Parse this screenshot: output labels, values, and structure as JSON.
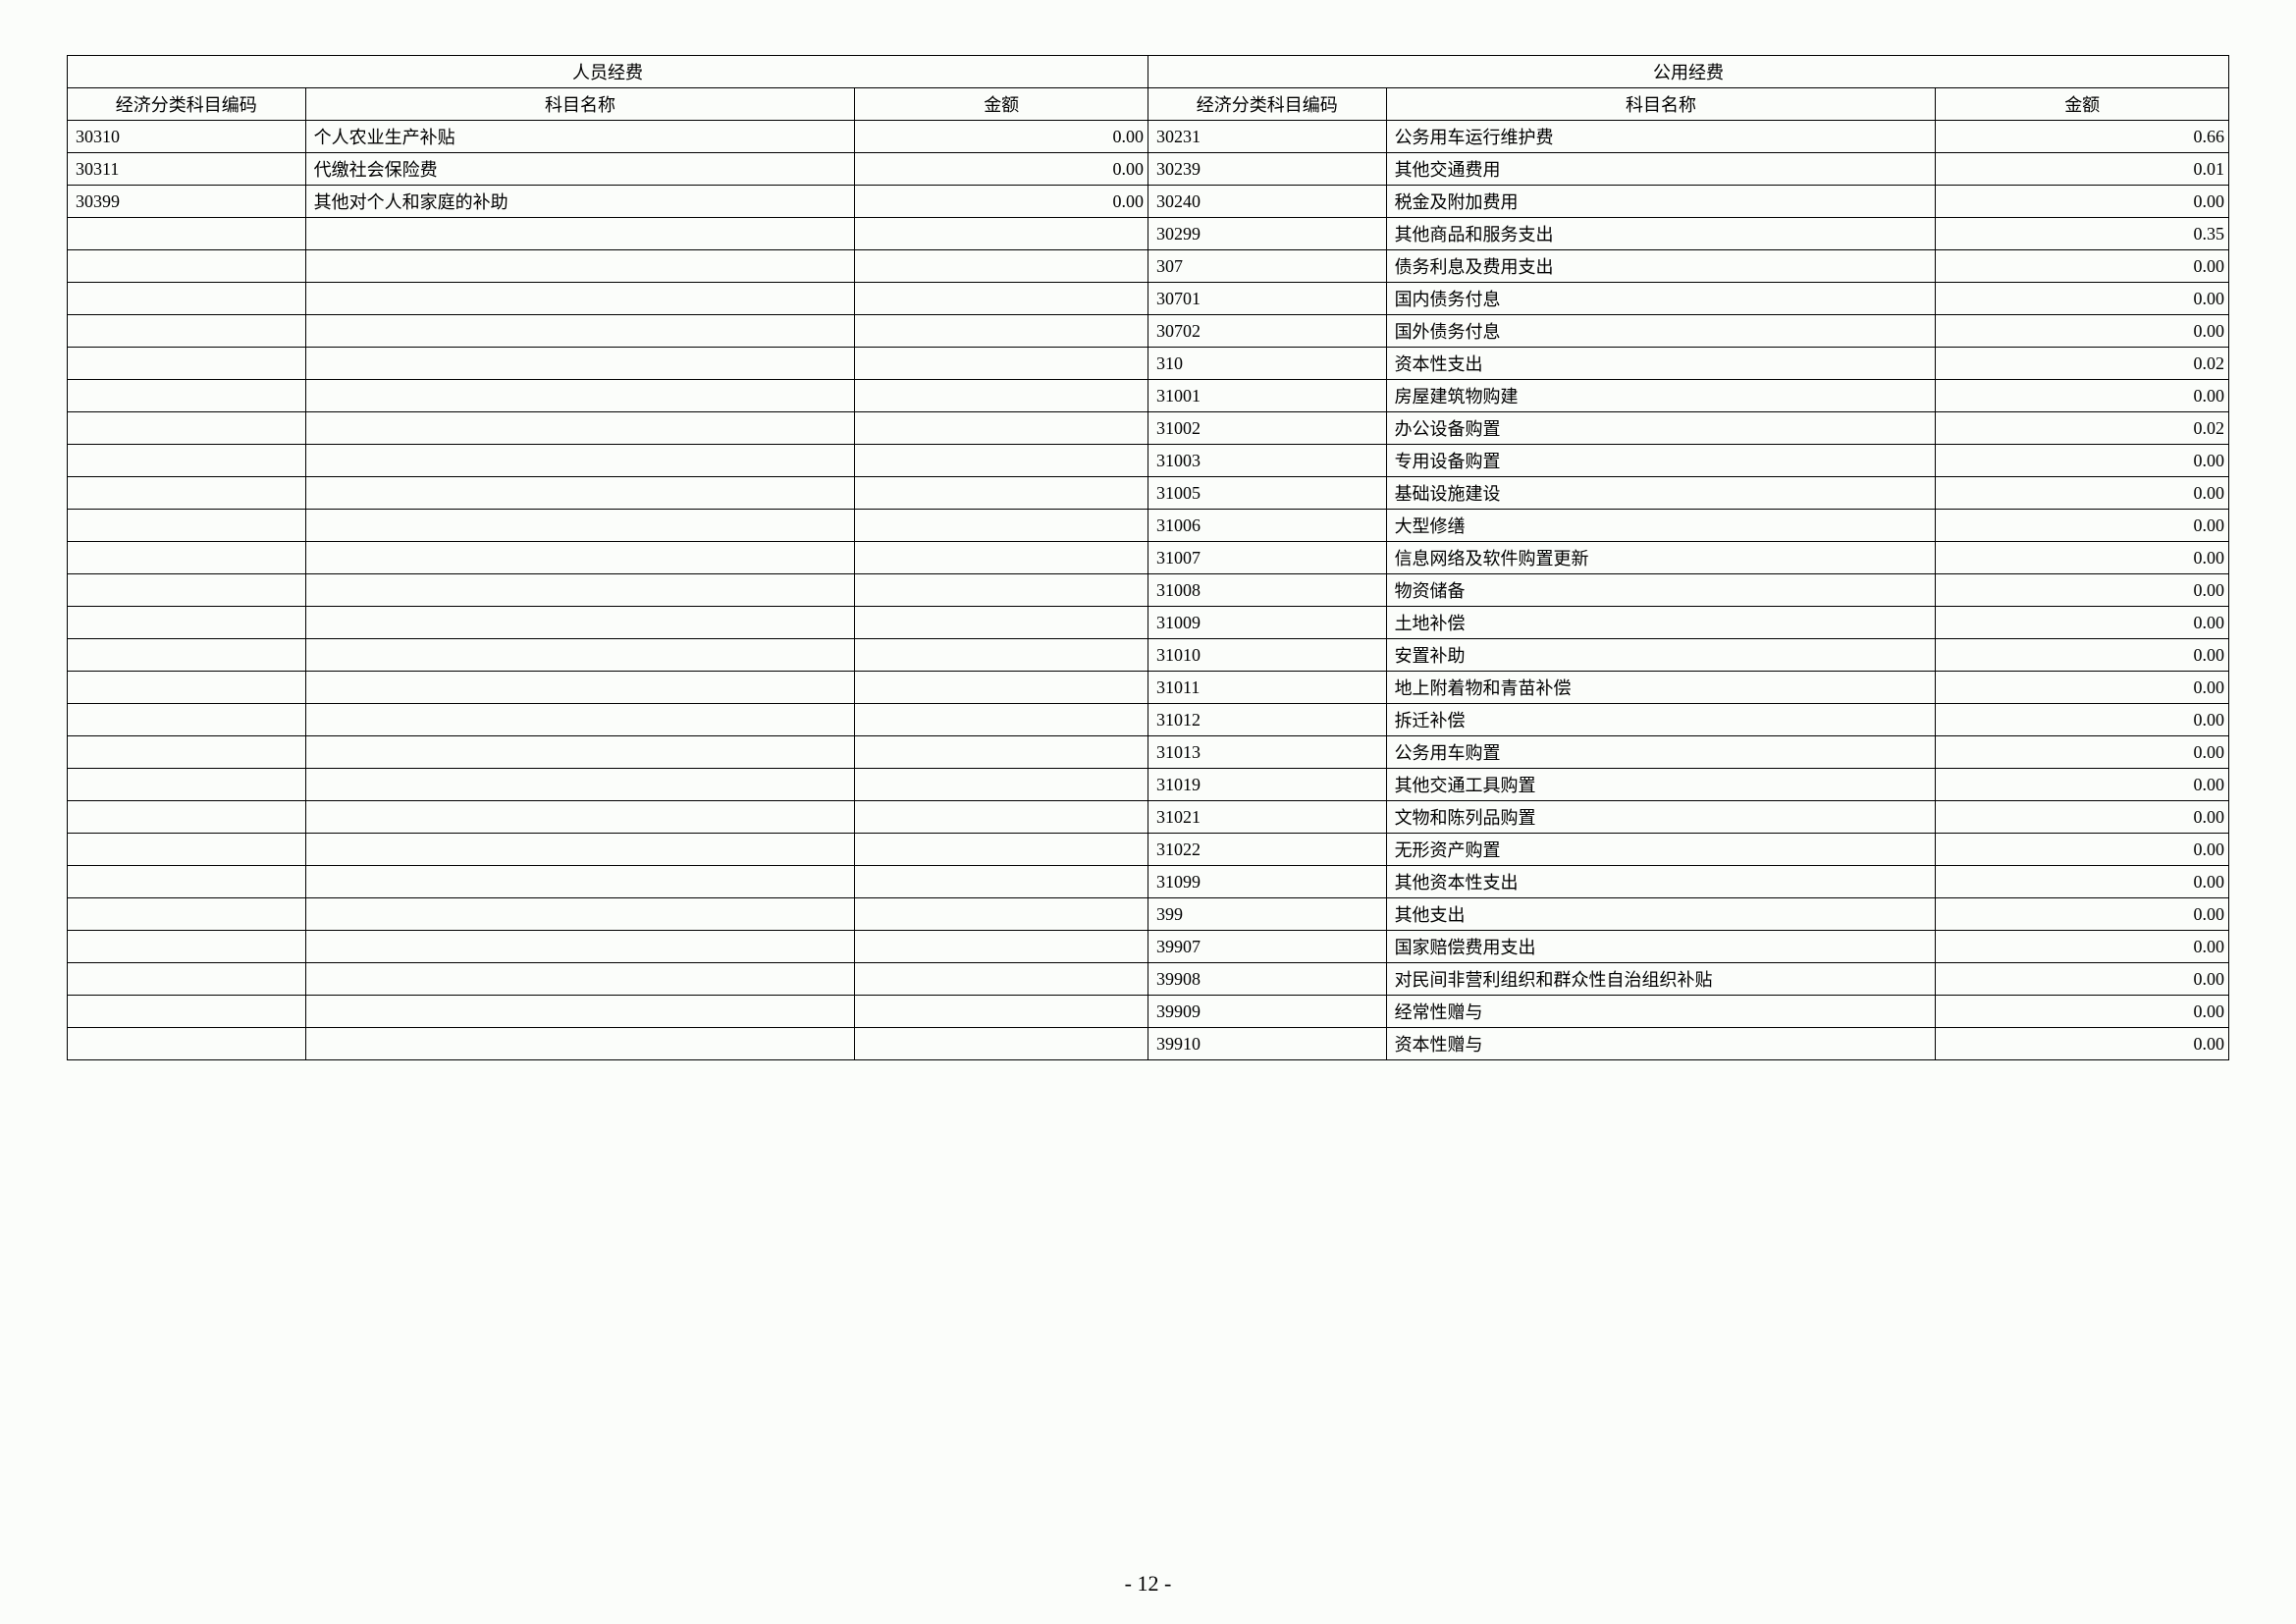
{
  "headers": {
    "group1": "人员经费",
    "group2": "公用经费",
    "code": "经济分类科目编码",
    "name": "科目名称",
    "amount": "金额"
  },
  "rows": [
    {
      "c1": "30310",
      "n1": "个人农业生产补贴",
      "a1": "0.00",
      "c2": "30231",
      "n2": "公务用车运行维护费",
      "a2": "0.66"
    },
    {
      "c1": "30311",
      "n1": "代缴社会保险费",
      "a1": "0.00",
      "c2": "30239",
      "n2": "其他交通费用",
      "a2": "0.01"
    },
    {
      "c1": "30399",
      "n1": "其他对个人和家庭的补助",
      "a1": "0.00",
      "c2": "30240",
      "n2": "税金及附加费用",
      "a2": "0.00"
    },
    {
      "c1": "",
      "n1": "",
      "a1": "",
      "c2": "30299",
      "n2": "其他商品和服务支出",
      "a2": "0.35"
    },
    {
      "c1": "",
      "n1": "",
      "a1": "",
      "c2": "307",
      "n2": "债务利息及费用支出",
      "a2": "0.00"
    },
    {
      "c1": "",
      "n1": "",
      "a1": "",
      "c2": "30701",
      "n2": "国内债务付息",
      "a2": "0.00"
    },
    {
      "c1": "",
      "n1": "",
      "a1": "",
      "c2": "30702",
      "n2": "国外债务付息",
      "a2": "0.00"
    },
    {
      "c1": "",
      "n1": "",
      "a1": "",
      "c2": "310",
      "n2": "资本性支出",
      "a2": "0.02"
    },
    {
      "c1": "",
      "n1": "",
      "a1": "",
      "c2": "31001",
      "n2": "房屋建筑物购建",
      "a2": "0.00"
    },
    {
      "c1": "",
      "n1": "",
      "a1": "",
      "c2": "31002",
      "n2": "办公设备购置",
      "a2": "0.02"
    },
    {
      "c1": "",
      "n1": "",
      "a1": "",
      "c2": "31003",
      "n2": "专用设备购置",
      "a2": "0.00"
    },
    {
      "c1": "",
      "n1": "",
      "a1": "",
      "c2": "31005",
      "n2": "基础设施建设",
      "a2": "0.00"
    },
    {
      "c1": "",
      "n1": "",
      "a1": "",
      "c2": "31006",
      "n2": "大型修缮",
      "a2": "0.00"
    },
    {
      "c1": "",
      "n1": "",
      "a1": "",
      "c2": "31007",
      "n2": "信息网络及软件购置更新",
      "a2": "0.00"
    },
    {
      "c1": "",
      "n1": "",
      "a1": "",
      "c2": "31008",
      "n2": "物资储备",
      "a2": "0.00"
    },
    {
      "c1": "",
      "n1": "",
      "a1": "",
      "c2": "31009",
      "n2": "土地补偿",
      "a2": "0.00"
    },
    {
      "c1": "",
      "n1": "",
      "a1": "",
      "c2": "31010",
      "n2": "安置补助",
      "a2": "0.00"
    },
    {
      "c1": "",
      "n1": "",
      "a1": "",
      "c2": "31011",
      "n2": "地上附着物和青苗补偿",
      "a2": "0.00"
    },
    {
      "c1": "",
      "n1": "",
      "a1": "",
      "c2": "31012",
      "n2": "拆迁补偿",
      "a2": "0.00"
    },
    {
      "c1": "",
      "n1": "",
      "a1": "",
      "c2": "31013",
      "n2": "公务用车购置",
      "a2": "0.00"
    },
    {
      "c1": "",
      "n1": "",
      "a1": "",
      "c2": "31019",
      "n2": "其他交通工具购置",
      "a2": "0.00"
    },
    {
      "c1": "",
      "n1": "",
      "a1": "",
      "c2": "31021",
      "n2": "文物和陈列品购置",
      "a2": "0.00"
    },
    {
      "c1": "",
      "n1": "",
      "a1": "",
      "c2": "31022",
      "n2": "无形资产购置",
      "a2": "0.00"
    },
    {
      "c1": "",
      "n1": "",
      "a1": "",
      "c2": "31099",
      "n2": "其他资本性支出",
      "a2": "0.00"
    },
    {
      "c1": "",
      "n1": "",
      "a1": "",
      "c2": "399",
      "n2": "其他支出",
      "a2": "0.00"
    },
    {
      "c1": "",
      "n1": "",
      "a1": "",
      "c2": "39907",
      "n2": "国家赔偿费用支出",
      "a2": "0.00"
    },
    {
      "c1": "",
      "n1": "",
      "a1": "",
      "c2": "39908",
      "n2": "对民间非营利组织和群众性自治组织补贴",
      "a2": "0.00"
    },
    {
      "c1": "",
      "n1": "",
      "a1": "",
      "c2": "39909",
      "n2": "经常性赠与",
      "a2": "0.00"
    },
    {
      "c1": "",
      "n1": "",
      "a1": "",
      "c2": "39910",
      "n2": "资本性赠与",
      "a2": "0.00"
    }
  ],
  "pageNumber": "- 12 -",
  "layout": {
    "col_widths": {
      "code": 130,
      "name": 300,
      "amount": 160
    },
    "font_size": 18,
    "border_color": "#000000",
    "background_color": "#fbfdfa"
  }
}
